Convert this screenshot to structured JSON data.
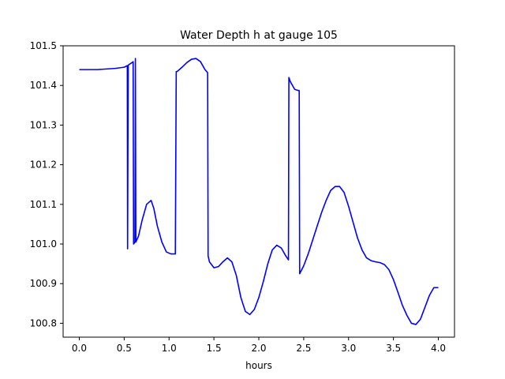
{
  "chart_data": {
    "type": "line",
    "title": "Water Depth h at gauge 105",
    "xlabel": "hours",
    "ylabel": "",
    "xlim": [
      -0.18,
      4.18
    ],
    "ylim": [
      100.765,
      101.5
    ],
    "xticks": [
      0.0,
      0.5,
      1.0,
      1.5,
      2.0,
      2.5,
      3.0,
      3.5,
      4.0
    ],
    "xtick_labels": [
      "0.0",
      "0.5",
      "1.0",
      "1.5",
      "2.0",
      "2.5",
      "3.0",
      "3.5",
      "4.0"
    ],
    "yticks": [
      100.8,
      100.9,
      101.0,
      101.1,
      101.2,
      101.3,
      101.4,
      101.5
    ],
    "ytick_labels": [
      "100.8",
      "100.9",
      "101.0",
      "101.1",
      "101.2",
      "101.3",
      "101.4",
      "101.5"
    ],
    "grid": false,
    "series": [
      {
        "color": "#0000ff",
        "x": [
          0.0,
          0.2,
          0.4,
          0.5,
          0.535,
          0.538,
          0.545,
          0.55,
          0.57,
          0.59,
          0.6,
          0.605,
          0.62,
          0.625,
          0.63,
          0.64,
          0.66,
          0.7,
          0.75,
          0.8,
          0.83,
          0.87,
          0.92,
          0.97,
          1.02,
          1.07,
          1.08,
          1.085,
          1.1,
          1.15,
          1.2,
          1.25,
          1.3,
          1.35,
          1.4,
          1.43,
          1.435,
          1.45,
          1.5,
          1.55,
          1.6,
          1.65,
          1.7,
          1.75,
          1.8,
          1.85,
          1.9,
          1.95,
          2.0,
          2.05,
          2.1,
          2.15,
          2.2,
          2.25,
          2.3,
          2.33,
          2.335,
          2.35,
          2.4,
          2.445,
          2.45,
          2.455,
          2.5,
          2.55,
          2.6,
          2.65,
          2.7,
          2.75,
          2.8,
          2.85,
          2.9,
          2.95,
          3.0,
          3.05,
          3.1,
          3.15,
          3.2,
          3.25,
          3.3,
          3.35,
          3.4,
          3.45,
          3.5,
          3.55,
          3.6,
          3.65,
          3.7,
          3.75,
          3.8,
          3.85,
          3.9,
          3.95,
          4.0
        ],
        "y": [
          101.44,
          101.44,
          101.443,
          101.446,
          101.45,
          100.988,
          101.45,
          101.452,
          101.455,
          101.458,
          101.46,
          101.0,
          101.005,
          101.468,
          101.005,
          101.01,
          101.02,
          101.06,
          101.1,
          101.11,
          101.09,
          101.045,
          101.005,
          100.98,
          100.975,
          100.975,
          101.435,
          101.435,
          101.437,
          101.447,
          101.458,
          101.466,
          101.468,
          101.46,
          101.44,
          101.432,
          100.97,
          100.955,
          100.94,
          100.943,
          100.955,
          100.965,
          100.955,
          100.92,
          100.865,
          100.83,
          100.822,
          100.835,
          100.865,
          100.905,
          100.95,
          100.985,
          100.997,
          100.99,
          100.97,
          100.96,
          101.42,
          101.41,
          101.39,
          101.387,
          101.387,
          100.925,
          100.945,
          100.975,
          101.01,
          101.045,
          101.08,
          101.11,
          101.135,
          101.145,
          101.145,
          101.13,
          101.095,
          101.055,
          101.015,
          100.985,
          100.965,
          100.958,
          100.955,
          100.953,
          100.948,
          100.935,
          100.91,
          100.878,
          100.845,
          100.82,
          100.8,
          100.797,
          100.81,
          100.84,
          100.87,
          100.89,
          100.89
        ]
      }
    ]
  }
}
